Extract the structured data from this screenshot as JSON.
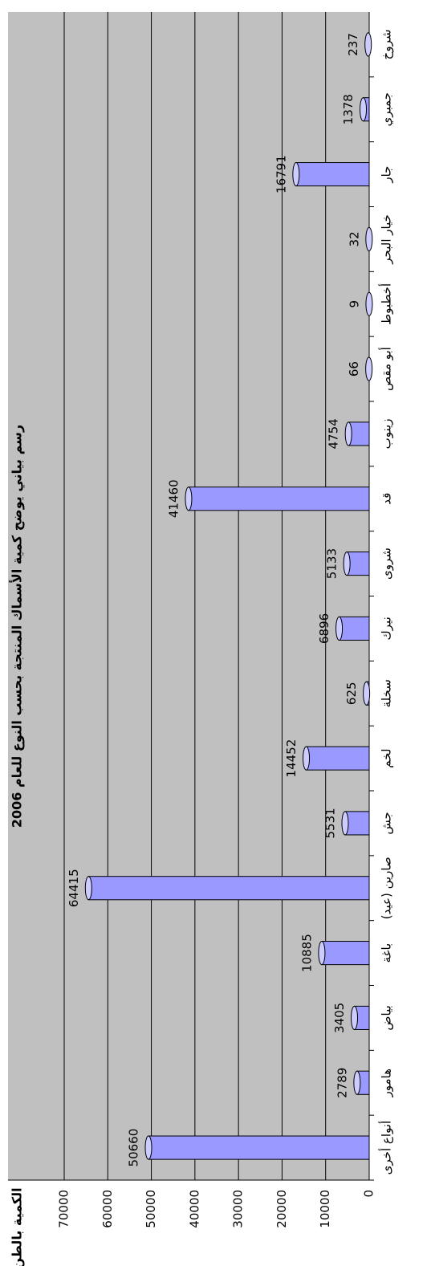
{
  "chart_data": {
    "type": "bar",
    "title": "رسم بياني يوضح كمية الأسماك المنتجة بحسب النوع للعام 2006",
    "y_label": "الكمية بالطن",
    "categories": [
      "أنواع أخرى",
      "هامور",
      "بياض",
      "باغة",
      "صارين (عيد)",
      "جش",
      "لخم",
      "سخلة",
      "نيرك",
      "شروى",
      "قد",
      "زينوب",
      "أبو مقص",
      "أخطبوط",
      "خيار البحر",
      "جار",
      "جمبري",
      "شروخ"
    ],
    "values": [
      50660,
      2789,
      3405,
      10885,
      64415,
      5531,
      14452,
      625,
      6896,
      5133,
      41460,
      4754,
      66,
      9,
      32,
      16791,
      1378,
      237
    ],
    "color": "#9999ff",
    "ylim": [
      0,
      70000
    ],
    "yticks": [
      0,
      10000,
      20000,
      30000,
      40000,
      50000,
      60000,
      70000
    ],
    "grid": true
  }
}
